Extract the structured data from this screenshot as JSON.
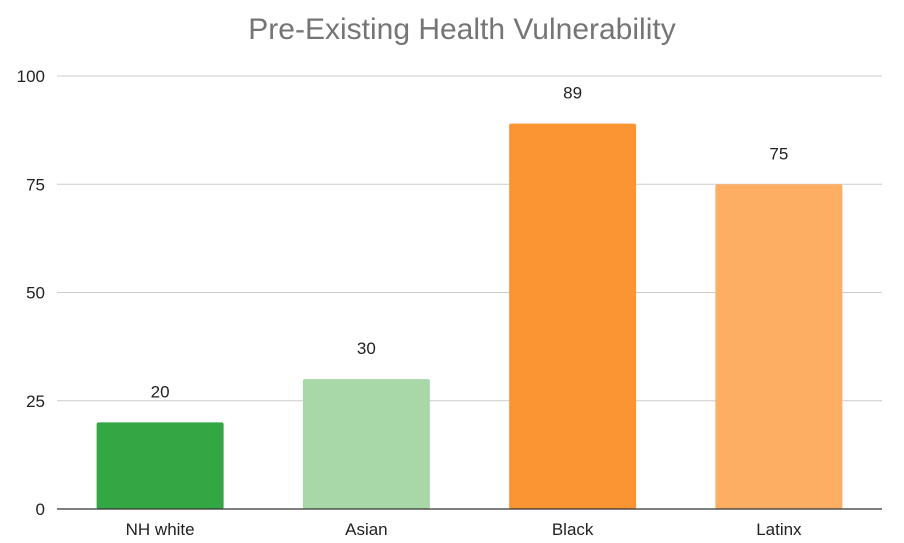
{
  "chart_data": {
    "type": "bar",
    "title": "Pre-Existing Health Vulnerability",
    "xlabel": "",
    "ylabel": "",
    "categories": [
      "NH white",
      "Asian",
      "Black",
      "Latinx"
    ],
    "values": [
      20,
      30,
      89,
      75
    ],
    "data_labels": [
      "20",
      "30",
      "89",
      "75"
    ],
    "bar_colors": [
      "#34a745",
      "#a8d8a8",
      "#fb9432",
      "#fdae62"
    ],
    "ylim": [
      0,
      100
    ],
    "yticks": [
      0,
      25,
      50,
      75,
      100
    ],
    "grid": true,
    "legend": "none"
  }
}
